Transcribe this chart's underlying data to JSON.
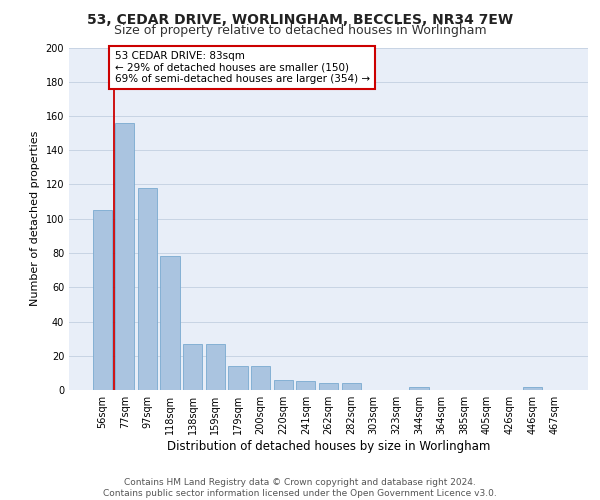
{
  "title1": "53, CEDAR DRIVE, WORLINGHAM, BECCLES, NR34 7EW",
  "title2": "Size of property relative to detached houses in Worlingham",
  "xlabel": "Distribution of detached houses by size in Worlingham",
  "ylabel": "Number of detached properties",
  "categories": [
    "56sqm",
    "77sqm",
    "97sqm",
    "118sqm",
    "138sqm",
    "159sqm",
    "179sqm",
    "200sqm",
    "220sqm",
    "241sqm",
    "262sqm",
    "282sqm",
    "303sqm",
    "323sqm",
    "344sqm",
    "364sqm",
    "385sqm",
    "405sqm",
    "426sqm",
    "446sqm",
    "467sqm"
  ],
  "values": [
    105,
    156,
    118,
    78,
    27,
    27,
    14,
    14,
    6,
    5,
    4,
    4,
    0,
    0,
    2,
    0,
    0,
    0,
    0,
    2,
    0
  ],
  "bar_color": "#aac4e0",
  "bar_edge_color": "#7aaad0",
  "vline_x": 0.5,
  "annotation_box_text": "53 CEDAR DRIVE: 83sqm\n← 29% of detached houses are smaller (150)\n69% of semi-detached houses are larger (354) →",
  "annotation_box_edge_color": "#cc0000",
  "annotation_box_face_color": "#ffffff",
  "grid_color": "#c8d4e4",
  "bg_color": "#e8eef8",
  "ylim": [
    0,
    200
  ],
  "yticks": [
    0,
    20,
    40,
    60,
    80,
    100,
    120,
    140,
    160,
    180,
    200
  ],
  "footer_text": "Contains HM Land Registry data © Crown copyright and database right 2024.\nContains public sector information licensed under the Open Government Licence v3.0.",
  "title1_fontsize": 10,
  "title2_fontsize": 9,
  "xlabel_fontsize": 8.5,
  "ylabel_fontsize": 8,
  "tick_fontsize": 7,
  "annotation_fontsize": 7.5,
  "footer_fontsize": 6.5
}
